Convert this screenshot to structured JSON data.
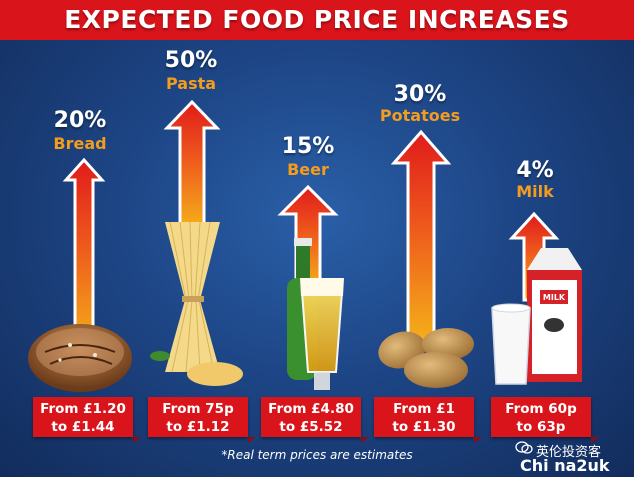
{
  "title": "EXPECTED FOOD PRICE INCREASES",
  "items": [
    {
      "percent": "20%",
      "name": "Bread",
      "from": "From £1.20",
      "to": "to £1.44"
    },
    {
      "percent": "50%",
      "name": "Pasta",
      "from": "From 75p",
      "to": "to £1.12"
    },
    {
      "percent": "15%",
      "name": "Beer",
      "from": "From £4.80",
      "to": "to £5.52"
    },
    {
      "percent": "30%",
      "name": "Potatoes",
      "from": "From £1",
      "to": "to £1.30"
    },
    {
      "percent": "4%",
      "name": "Milk",
      "from": "From 60p",
      "to": "to 63p"
    }
  ],
  "note": "*Real term prices are estimates",
  "milk_carton_label": "MILK",
  "watermark": {
    "line1": "英伦投资客",
    "line2": "Chi na2uk"
  },
  "colors": {
    "header_red": "#d9141b",
    "name_orange": "#f39c1e",
    "background_blue": "#1d4585"
  }
}
